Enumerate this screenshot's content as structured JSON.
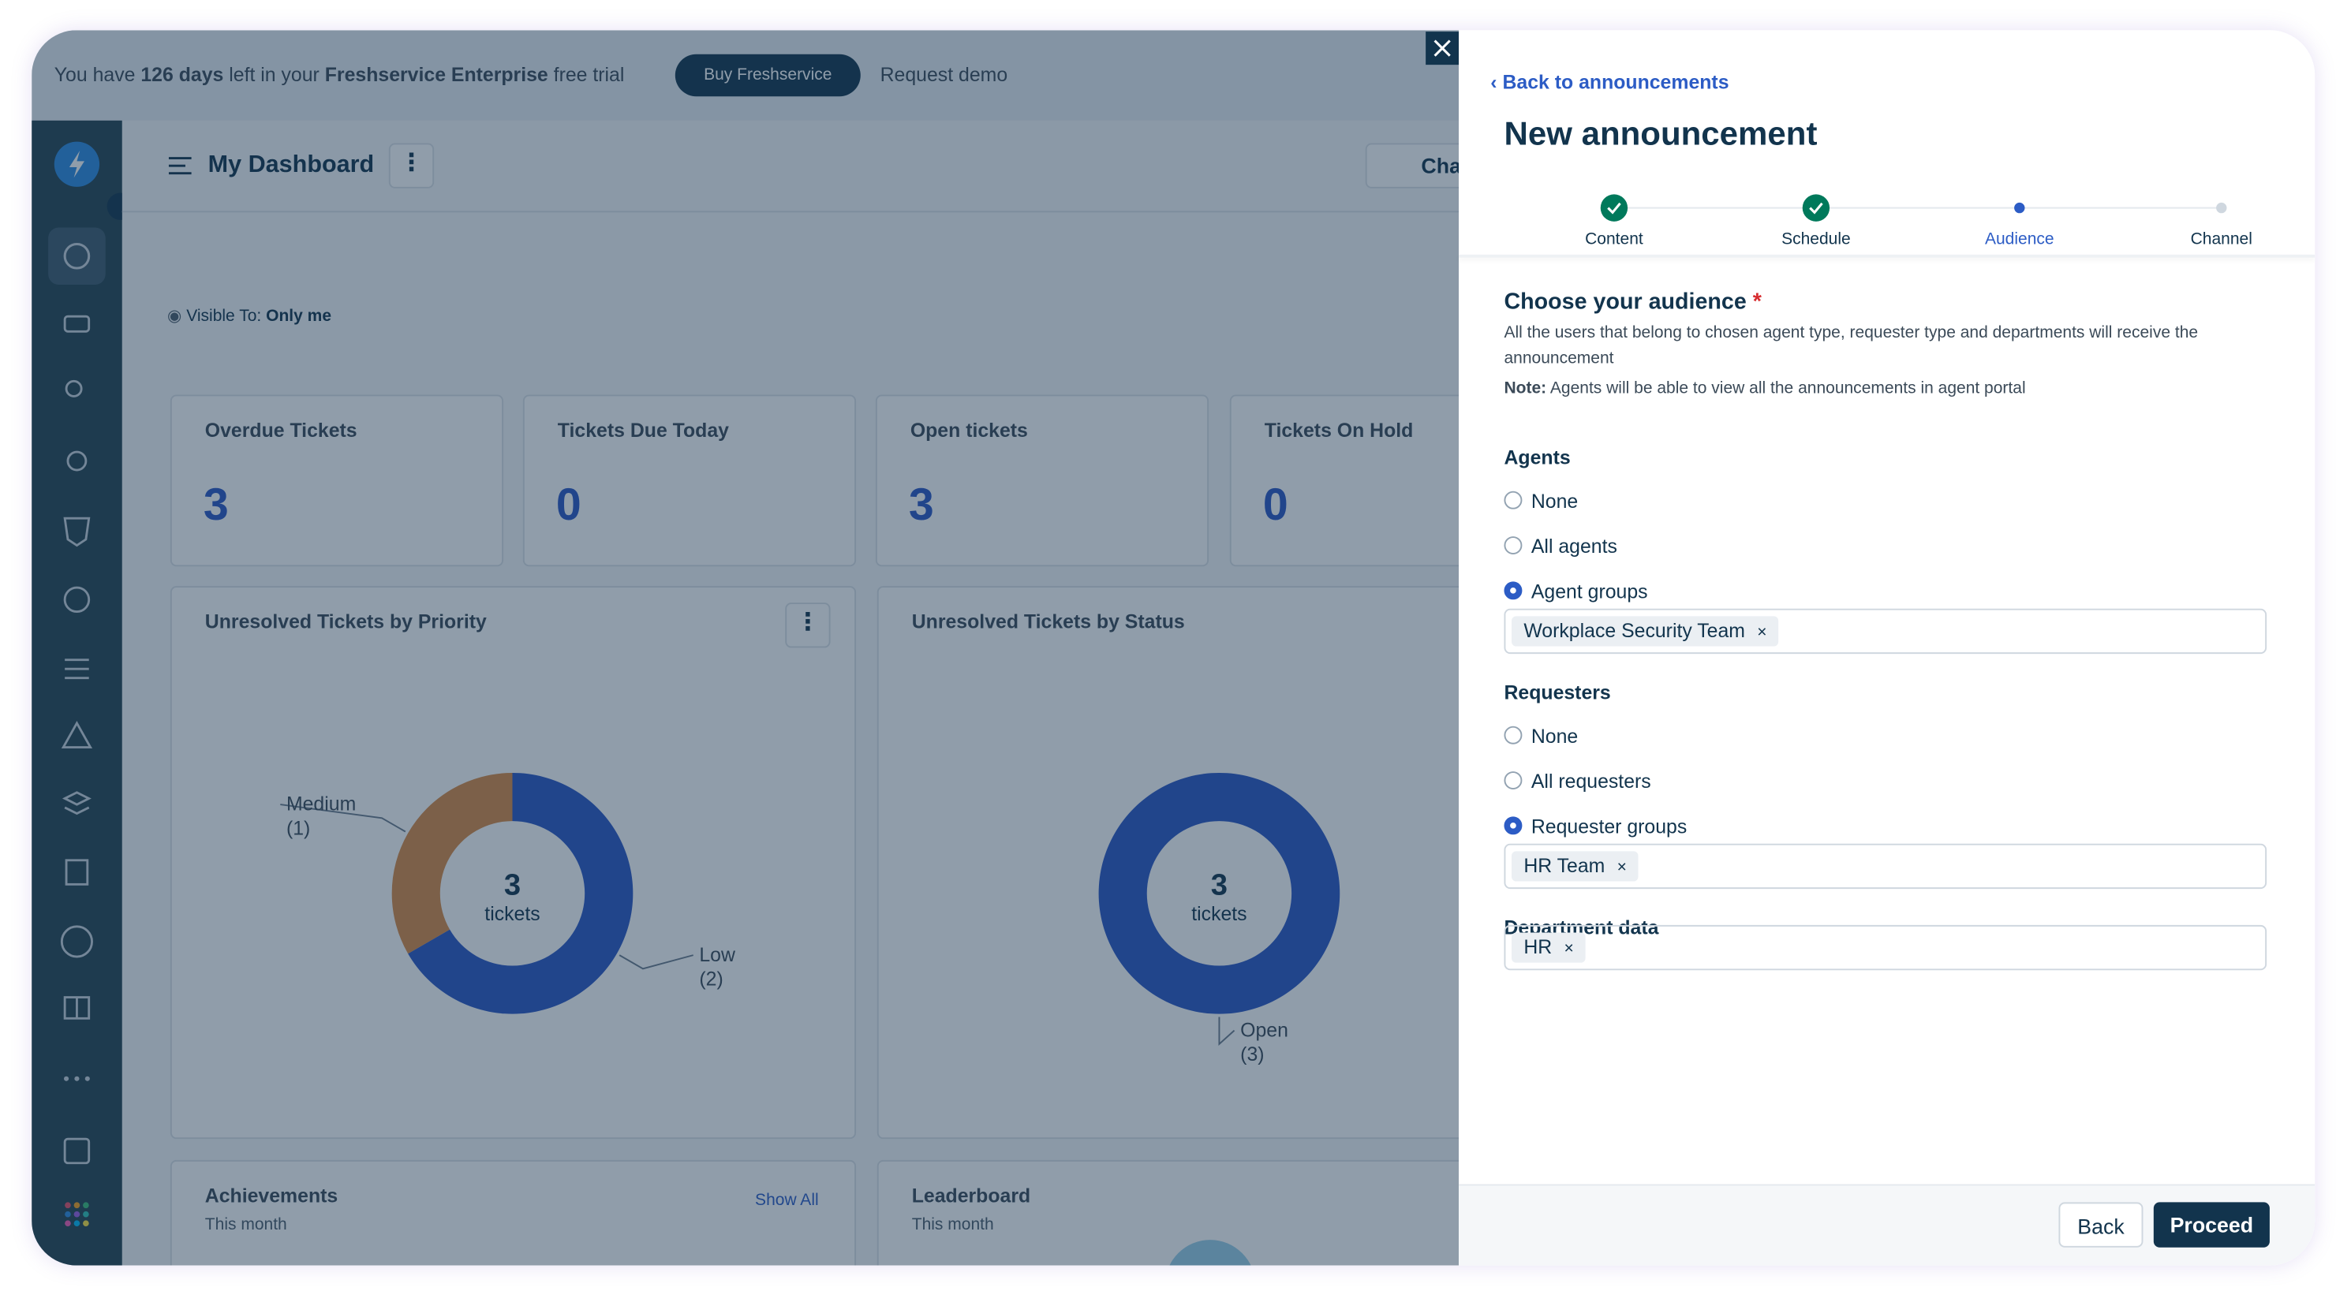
{
  "trial_banner": {
    "prefix": "You have",
    "days": "126 days",
    "middle": "left in your",
    "product": "Freshservice Enterprise",
    "suffix": "free trial",
    "buy": "Buy Freshservice",
    "demo": "Request demo"
  },
  "dashboard": {
    "title": "My Dashboard",
    "chat_button": "Cha",
    "visible_label": "Visible To:",
    "visible_value": "Only me",
    "cards": [
      {
        "label": "Overdue Tickets",
        "value": 3
      },
      {
        "label": "Tickets Due Today",
        "value": 0
      },
      {
        "label": "Open tickets",
        "value": 3
      },
      {
        "label": "Tickets On Hold",
        "value": 0
      }
    ],
    "widgets": [
      {
        "title": "Unresolved Tickets by Priority",
        "center_value": 3,
        "center_label": "tickets",
        "segments": [
          {
            "name": "Low",
            "value": 2,
            "value_label": "(2)",
            "color": "#2b56c4"
          },
          {
            "name": "Medium",
            "value": 1,
            "value_label": "(1)",
            "color": "#d88a46"
          }
        ]
      },
      {
        "title": "Unresolved Tickets by Status",
        "center_value": 3,
        "center_label": "tickets",
        "segments": [
          {
            "name": "Open",
            "value": 3,
            "value_label": "(3)",
            "color": "#2b56c4"
          }
        ]
      }
    ],
    "achievements": {
      "title": "Achievements",
      "subtitle": "This month",
      "link": "Show All"
    },
    "leaderboard": {
      "title": "Leaderboard",
      "subtitle": "This month"
    }
  },
  "panel": {
    "back_link": "Back to announcements",
    "title": "New announcement",
    "steps": [
      {
        "label": "Content",
        "status": "done"
      },
      {
        "label": "Schedule",
        "status": "done"
      },
      {
        "label": "Audience",
        "status": "current"
      },
      {
        "label": "Channel",
        "status": "pending"
      }
    ],
    "heading": "Choose your audience",
    "required_mark": "*",
    "description": "All the users that belong to chosen agent type, requester type and departments will receive the announcement",
    "note_label": "Note:",
    "note_text": "Agents will be able to view all the announcements in agent portal",
    "groups": [
      {
        "label": "Agents",
        "options": [
          "None",
          "All agents",
          "Agent groups"
        ],
        "selected": 2,
        "tags": [
          "Workplace Security Team"
        ]
      },
      {
        "label": "Requesters",
        "options": [
          "None",
          "All requesters",
          "Requester groups"
        ],
        "selected": 2,
        "tags": [
          "HR Team"
        ]
      },
      {
        "label": "Department data",
        "options": [],
        "selected": null,
        "tags": [
          "HR"
        ]
      }
    ],
    "buttons": {
      "back": "Back",
      "proceed": "Proceed"
    }
  }
}
